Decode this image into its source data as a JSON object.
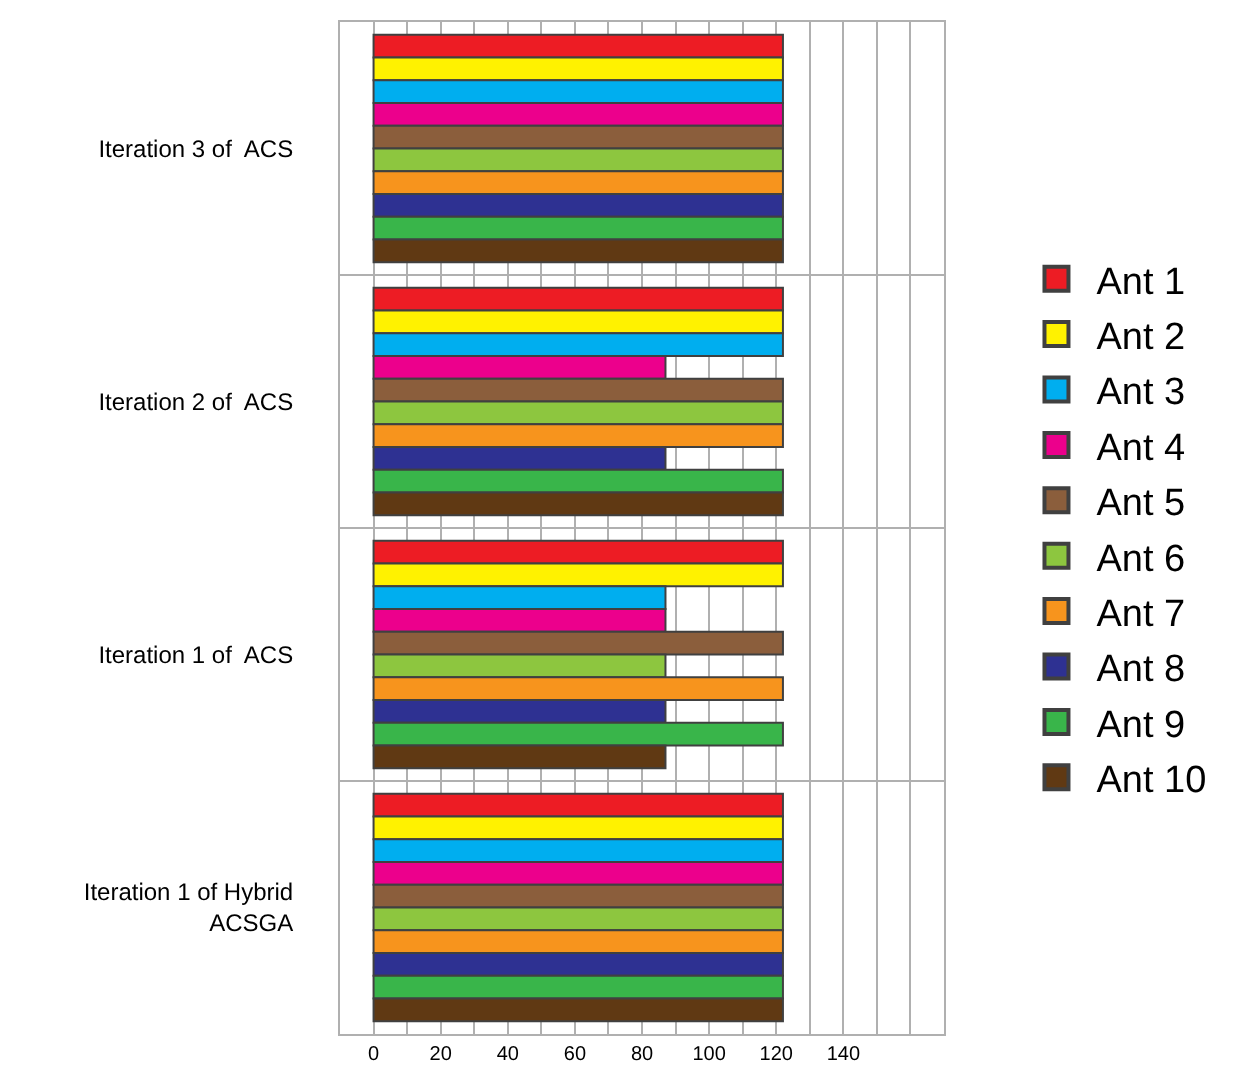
{
  "chart_data": {
    "type": "bar",
    "orientation": "horizontal",
    "categories": [
      "Iteration 3 of  ACS",
      "Iteration 2 of  ACS",
      "Iteration 1 of  ACS",
      "Iteration 1 of Hybrid ACSGA"
    ],
    "series": [
      {
        "name": "Ant 1",
        "color": "#ed1c24",
        "values": [
          122,
          122,
          122,
          122
        ]
      },
      {
        "name": "Ant 2",
        "color": "#fff200",
        "values": [
          122,
          122,
          122,
          122
        ]
      },
      {
        "name": "Ant 3",
        "color": "#00aeef",
        "values": [
          122,
          122,
          87,
          122
        ]
      },
      {
        "name": "Ant 4",
        "color": "#ec008c",
        "values": [
          122,
          87,
          87,
          122
        ]
      },
      {
        "name": "Ant 5",
        "color": "#8b5e3c",
        "values": [
          122,
          122,
          122,
          122
        ]
      },
      {
        "name": "Ant 6",
        "color": "#8dc63f",
        "values": [
          122,
          122,
          87,
          122
        ]
      },
      {
        "name": "Ant 7",
        "color": "#f7941d",
        "values": [
          122,
          122,
          122,
          122
        ]
      },
      {
        "name": "Ant 8",
        "color": "#2e3192",
        "values": [
          122,
          87,
          87,
          122
        ]
      },
      {
        "name": "Ant 9",
        "color": "#39b54a",
        "values": [
          122,
          122,
          122,
          122
        ]
      },
      {
        "name": "Ant 10",
        "color": "#603913",
        "values": [
          122,
          122,
          87,
          122
        ]
      }
    ],
    "xlim": [
      -10,
      170
    ],
    "xticks": [
      0,
      {
        "value": 10,
        "label": null
      },
      20,
      {
        "value": 30,
        "label": null
      },
      40,
      {
        "value": 50,
        "label": null
      },
      60,
      {
        "value": 70,
        "label": null
      },
      80,
      {
        "value": 90,
        "label": null
      },
      100,
      {
        "value": 110,
        "label": null
      },
      120,
      {
        "value": 130,
        "label": null
      },
      140,
      {
        "value": 150,
        "label": null
      },
      {
        "value": 160,
        "label": null
      }
    ],
    "grid": true,
    "legend": "right"
  }
}
